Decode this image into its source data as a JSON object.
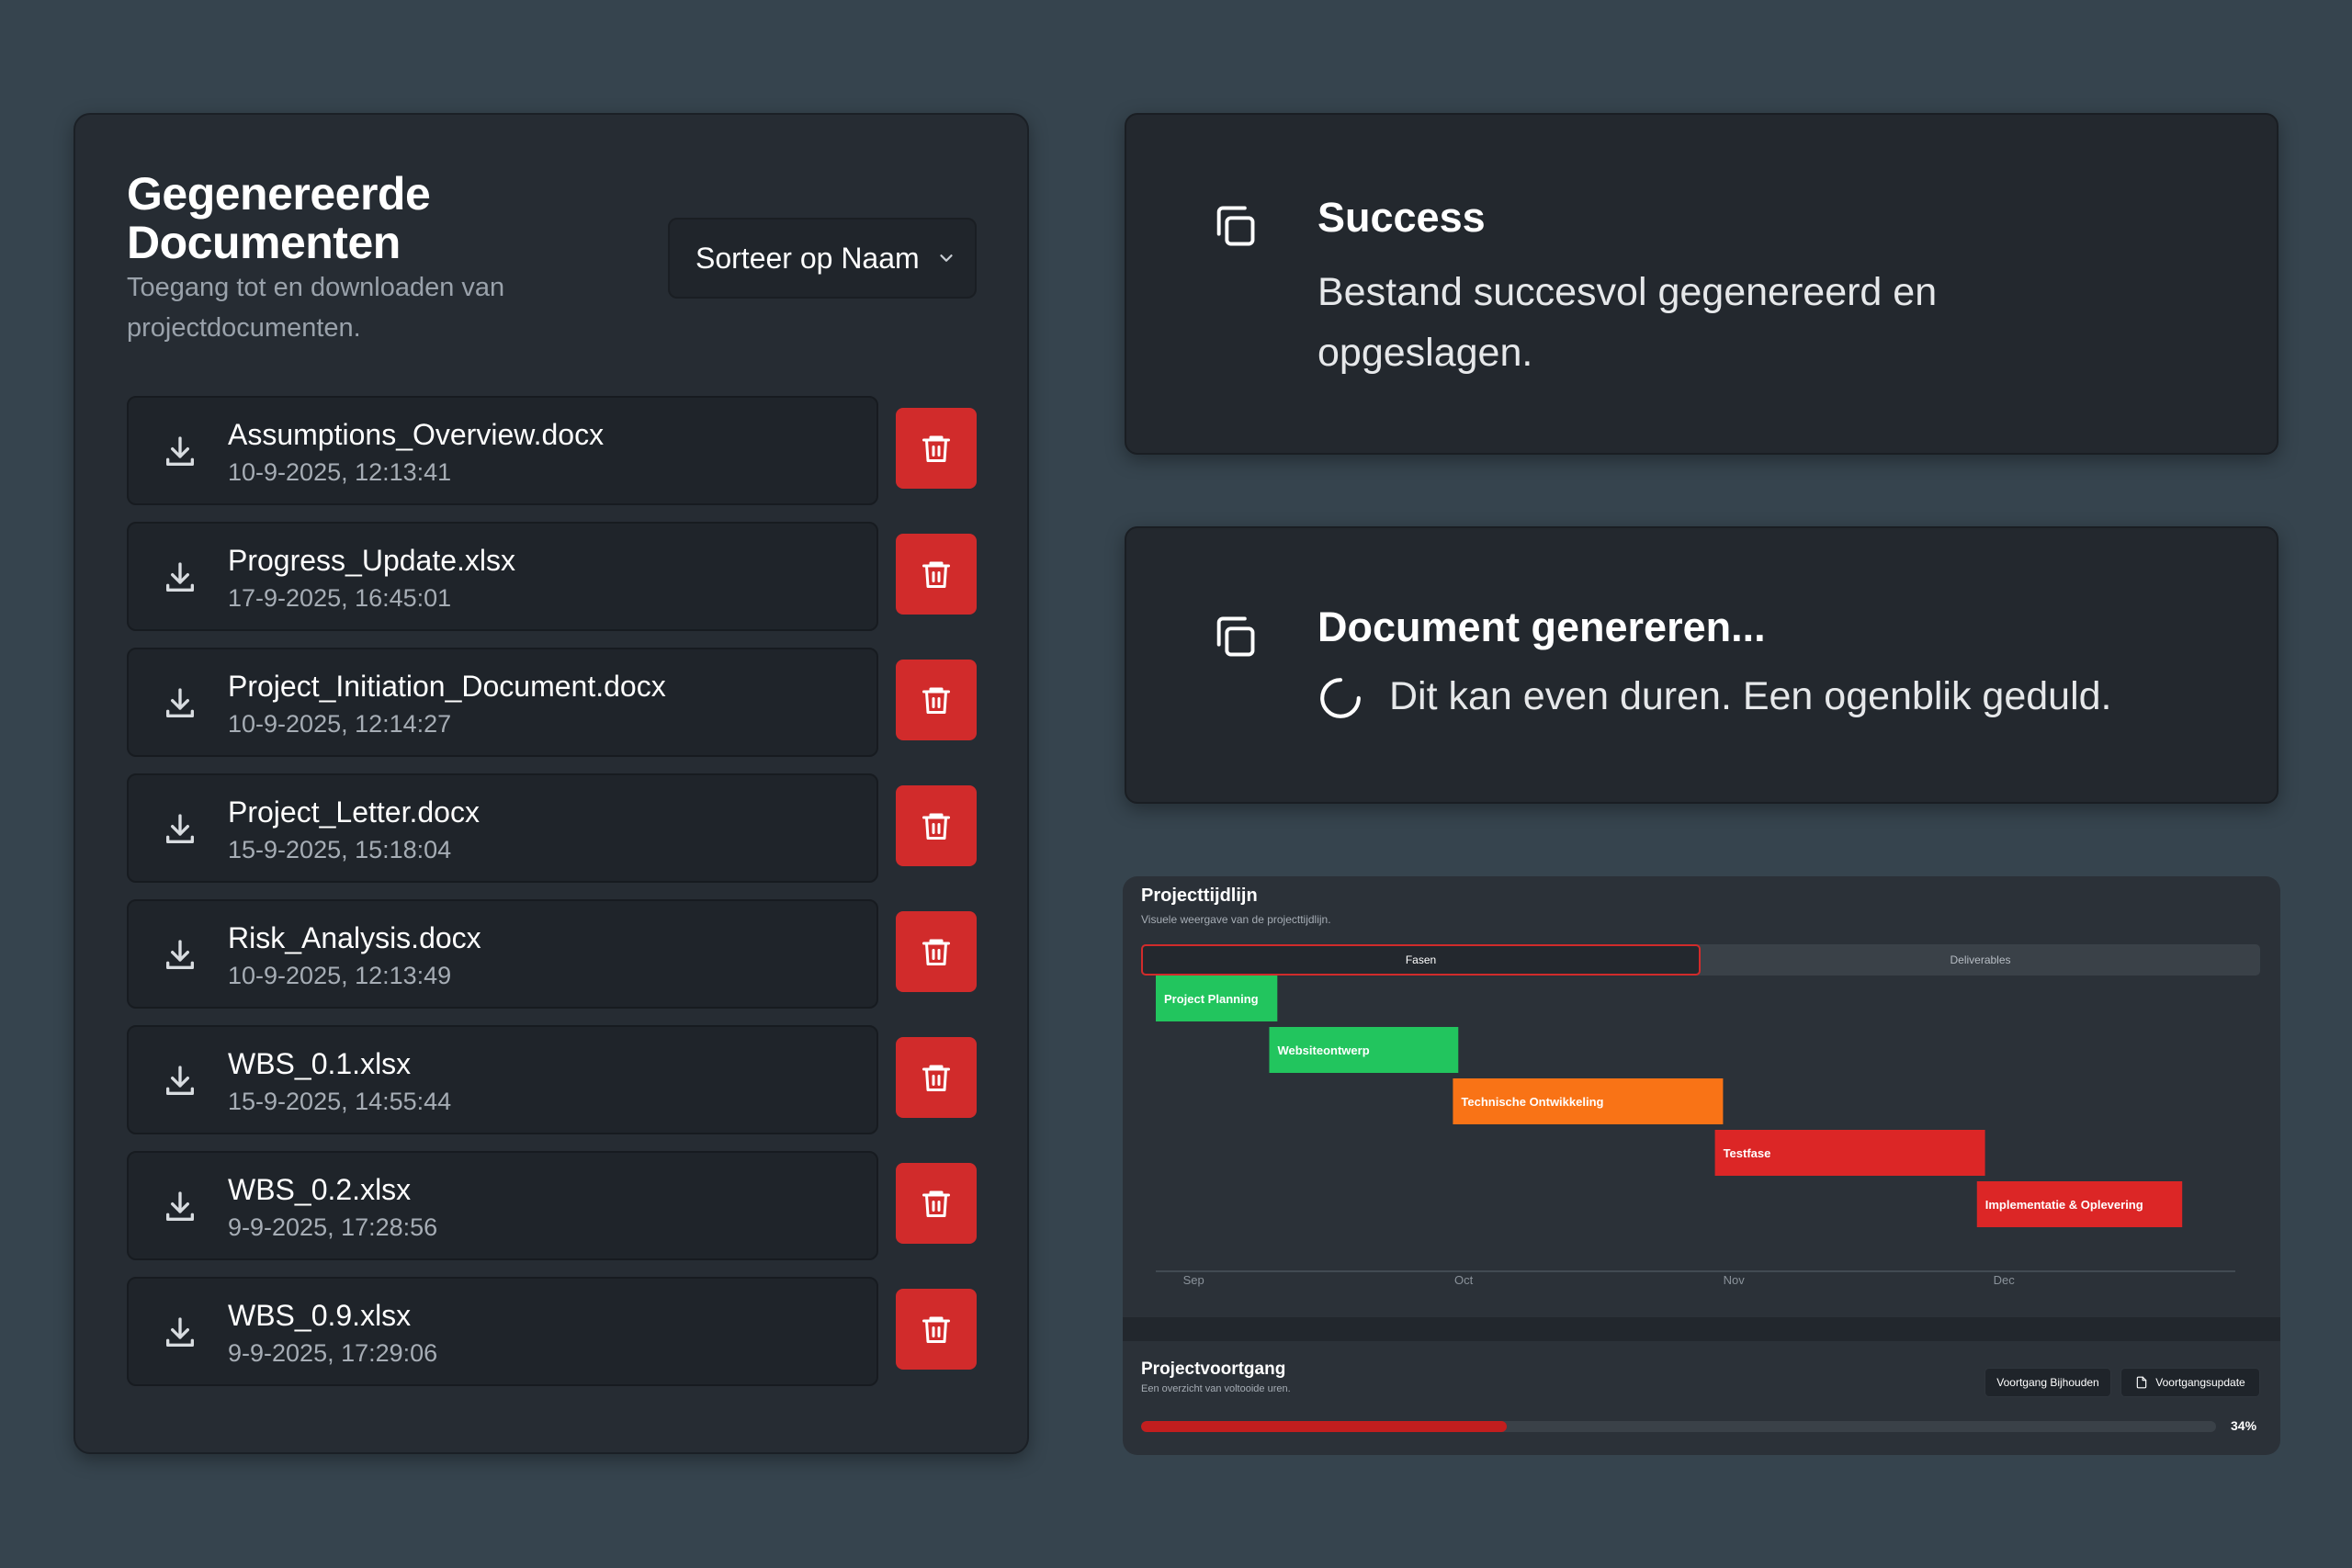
{
  "documents_panel": {
    "title": "Gegenereerde Documenten",
    "subtitle": "Toegang tot en downloaden van projectdocumenten.",
    "sort_label": "Sorteer op Naam",
    "accent_color": "#d12b2b",
    "documents": [
      {
        "name": "Assumptions_Overview.docx",
        "date": "10-9-2025, 12:13:41"
      },
      {
        "name": "Progress_Update.xlsx",
        "date": "17-9-2025, 16:45:01"
      },
      {
        "name": "Project_Initiation_Document.docx",
        "date": "10-9-2025, 12:14:27"
      },
      {
        "name": "Project_Letter.docx",
        "date": "15-9-2025, 15:18:04"
      },
      {
        "name": "Risk_Analysis.docx",
        "date": "10-9-2025, 12:13:49"
      },
      {
        "name": "WBS_0.1.xlsx",
        "date": "15-9-2025, 14:55:44"
      },
      {
        "name": "WBS_0.2.xlsx",
        "date": "9-9-2025, 17:28:56"
      },
      {
        "name": "WBS_0.9.xlsx",
        "date": "9-9-2025, 17:29:06"
      }
    ]
  },
  "toast_success": {
    "icon": "copy-icon",
    "title": "Success",
    "message": "Bestand succesvol gegenereerd en opgeslagen."
  },
  "toast_loading": {
    "icon": "copy-icon",
    "title": "Document genereren...",
    "message": "Dit kan even duren. Een ogenblik geduld."
  },
  "timeline": {
    "title": "Projecttijdlijn",
    "subtitle": "Visuele weergave van de projecttijdlijn.",
    "tabs": [
      {
        "label": "Fasen",
        "active": true
      },
      {
        "label": "Deliverables",
        "active": false
      }
    ]
  },
  "chart_data": {
    "type": "gantt",
    "x_tick_labels": [
      "Sep",
      "Oct",
      "Nov",
      "Dec"
    ],
    "tasks": [
      {
        "name": "Project Planning",
        "start": 0.0,
        "end": 0.45,
        "color": "#22c55e"
      },
      {
        "name": "Websiteontwerp",
        "start": 0.42,
        "end": 1.12,
        "color": "#22c55e"
      },
      {
        "name": "Technische Ontwikkeling",
        "start": 1.1,
        "end": 2.1,
        "color": "#f97316"
      },
      {
        "name": "Testfase",
        "start": 2.07,
        "end": 3.07,
        "color": "#dc2626"
      },
      {
        "name": "Implementatie & Oplevering",
        "start": 3.04,
        "end": 3.8,
        "color": "#dc2626"
      }
    ]
  },
  "progress": {
    "title": "Projectvoortgang",
    "subtitle": "Een overzicht van voltooide uren.",
    "track_button": "Voortgang Bijhouden",
    "update_button": "Voortgangsupdate",
    "update_icon": "document-icon",
    "percent_value": 34,
    "percent_label": "34%"
  }
}
